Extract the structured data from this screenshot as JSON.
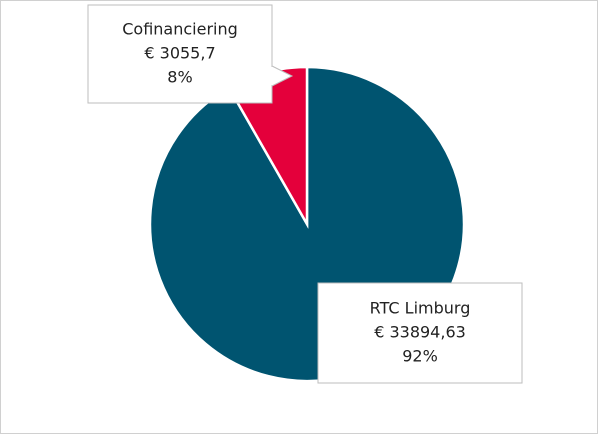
{
  "chart_data": {
    "type": "pie",
    "categories": [
      "RTC Limburg",
      "Cofinanciering"
    ],
    "values": [
      33894.63,
      3055.7
    ],
    "value_labels": [
      "€ 33894,63",
      "€ 3055,7"
    ],
    "percent_labels": [
      "92%",
      "8%"
    ],
    "colors": [
      "#005470",
      "#e4003b"
    ]
  }
}
